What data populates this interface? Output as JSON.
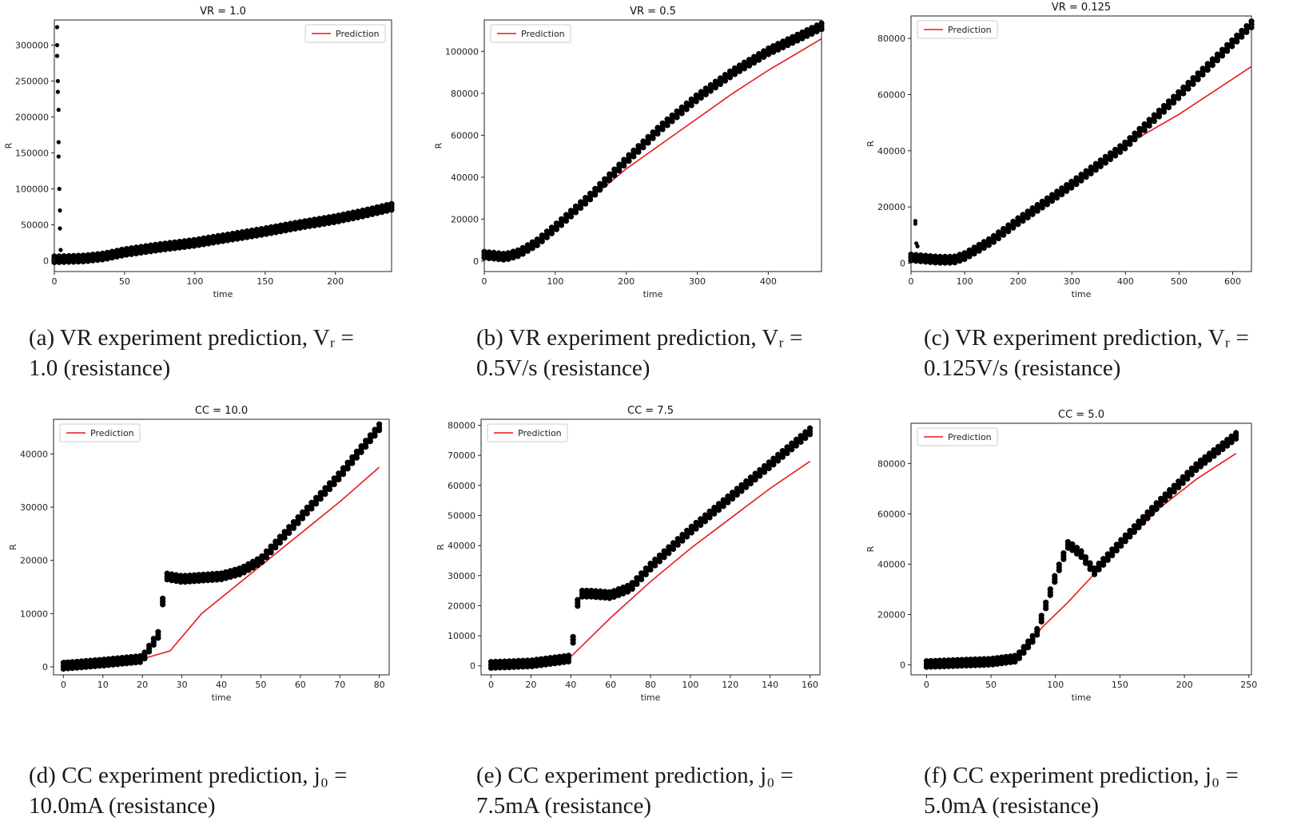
{
  "chart_data": [
    {
      "type": "scatter",
      "title": "VR = 1.0",
      "xlabel": "time",
      "ylabel": "R",
      "xlim": [
        0,
        240
      ],
      "ylim": [
        -15000,
        335000
      ],
      "xticks": [
        0,
        50,
        100,
        150,
        200
      ],
      "yticks": [
        0,
        50000,
        100000,
        150000,
        200000,
        250000,
        300000
      ],
      "legend": {
        "entries": [
          "Prediction"
        ],
        "placement": "upper right"
      },
      "series": [
        {
          "name": "Prediction",
          "kind": "line",
          "color": "#e41a1c",
          "x": [
            0,
            25,
            50,
            100,
            150,
            200,
            240
          ],
          "y": [
            0,
            2000,
            9000,
            26000,
            42000,
            59000,
            72000
          ]
        },
        {
          "kind": "points",
          "color": "#000000",
          "x": [
            0,
            20,
            35,
            50,
            75,
            100,
            125,
            150,
            175,
            200,
            220,
            240
          ],
          "y": [
            2000,
            3000,
            6000,
            12000,
            19000,
            25000,
            33000,
            41000,
            50000,
            58000,
            66000,
            75000
          ]
        },
        {
          "kind": "outliers",
          "color": "#000000",
          "x": [
            2,
            2,
            2,
            2.5,
            2.5,
            3,
            3,
            3,
            3.5,
            4,
            4,
            4.5
          ],
          "y": [
            325000,
            300000,
            285000,
            250000,
            235000,
            210000,
            165000,
            145000,
            100000,
            70000,
            45000,
            15000
          ]
        }
      ]
    },
    {
      "type": "scatter",
      "title": "VR = 0.5",
      "xlabel": "time",
      "ylabel": "R",
      "xlim": [
        0,
        475
      ],
      "ylim": [
        -5000,
        115000
      ],
      "xticks": [
        0,
        100,
        200,
        300,
        400
      ],
      "yticks": [
        0,
        20000,
        40000,
        60000,
        80000,
        100000
      ],
      "legend": {
        "entries": [
          "Prediction"
        ],
        "placement": "upper left"
      },
      "series": [
        {
          "name": "Prediction",
          "kind": "line",
          "color": "#e41a1c",
          "x": [
            0,
            50,
            100,
            150,
            200,
            250,
            300,
            350,
            400,
            475
          ],
          "y": [
            2000,
            2500,
            16000,
            30000,
            44000,
            56000,
            68000,
            80000,
            91000,
            106000
          ]
        },
        {
          "kind": "points",
          "color": "#000000",
          "x": [
            0,
            30,
            50,
            75,
            100,
            150,
            200,
            250,
            300,
            350,
            400,
            475
          ],
          "y": [
            3000,
            2000,
            4000,
            9000,
            16000,
            31000,
            48000,
            64000,
            78000,
            90000,
            100000,
            112000
          ]
        }
      ]
    },
    {
      "type": "scatter",
      "title": "VR = 0.125",
      "xlabel": "time",
      "ylabel": "R",
      "xlim": [
        0,
        635
      ],
      "ylim": [
        -3000,
        88000
      ],
      "xticks": [
        0,
        100,
        200,
        300,
        400,
        500,
        600
      ],
      "yticks": [
        0,
        20000,
        40000,
        60000,
        80000
      ],
      "legend": {
        "entries": [
          "Prediction"
        ],
        "placement": "upper left"
      },
      "series": [
        {
          "name": "Prediction",
          "kind": "line",
          "color": "#e41a1c",
          "x": [
            0,
            100,
            200,
            300,
            400,
            500,
            635
          ],
          "y": [
            1500,
            2000,
            15000,
            28000,
            42000,
            53000,
            70000
          ]
        },
        {
          "kind": "points",
          "color": "#000000",
          "x": [
            0,
            50,
            80,
            100,
            150,
            200,
            300,
            400,
            500,
            635
          ],
          "y": [
            2000,
            1200,
            1200,
            2500,
            8000,
            15000,
            28000,
            42000,
            60000,
            85000
          ]
        },
        {
          "kind": "outliers",
          "color": "#000000",
          "x": [
            8,
            8,
            10,
            12
          ],
          "y": [
            15000,
            14000,
            7000,
            6000
          ]
        }
      ]
    },
    {
      "type": "scatter",
      "title": "CC = 10.0",
      "xlabel": "time",
      "ylabel": "R",
      "xlim": [
        -2.5,
        82.5
      ],
      "ylim": [
        -1500,
        46500
      ],
      "xticks": [
        0,
        10,
        20,
        30,
        40,
        50,
        60,
        70,
        80
      ],
      "yticks": [
        0,
        10000,
        20000,
        30000,
        40000
      ],
      "legend": {
        "entries": [
          "Prediction"
        ],
        "placement": "upper left"
      },
      "series": [
        {
          "name": "Prediction",
          "kind": "line",
          "color": "#e41a1c",
          "x": [
            0,
            20,
            27,
            35,
            50,
            60,
            70,
            80
          ],
          "y": [
            1200,
            1500,
            3000,
            10000,
            19000,
            25000,
            31000,
            37500
          ]
        },
        {
          "kind": "points",
          "color": "#000000",
          "x": [
            0,
            10,
            20,
            24,
            26,
            30,
            40,
            45,
            50,
            60,
            70,
            80
          ],
          "y": [
            200,
            800,
            1500,
            6000,
            17000,
            16500,
            17000,
            18000,
            20000,
            28000,
            36000,
            45000
          ]
        }
      ]
    },
    {
      "type": "scatter",
      "title": "CC = 7.5",
      "xlabel": "time",
      "ylabel": "R",
      "xlim": [
        -5,
        165
      ],
      "ylim": [
        -3000,
        82000
      ],
      "xticks": [
        0,
        20,
        40,
        60,
        80,
        100,
        120,
        140,
        160
      ],
      "yticks": [
        0,
        10000,
        20000,
        30000,
        40000,
        50000,
        60000,
        70000,
        80000
      ],
      "legend": {
        "entries": [
          "Prediction"
        ],
        "placement": "upper left"
      },
      "series": [
        {
          "name": "Prediction",
          "kind": "line",
          "color": "#e41a1c",
          "x": [
            0,
            20,
            40,
            60,
            80,
            100,
            120,
            140,
            160
          ],
          "y": [
            1200,
            1500,
            3000,
            16000,
            28000,
            39000,
            49000,
            59000,
            68000
          ]
        },
        {
          "kind": "points",
          "color": "#000000",
          "x": [
            0,
            20,
            40,
            44,
            50,
            60,
            70,
            80,
            100,
            120,
            140,
            160
          ],
          "y": [
            300,
            800,
            2500,
            24000,
            24000,
            23500,
            26000,
            33000,
            45000,
            56000,
            67000,
            78000
          ]
        }
      ]
    },
    {
      "type": "scatter",
      "title": "CC = 5.0",
      "xlabel": "time",
      "ylabel": "R",
      "xlim": [
        -12,
        252
      ],
      "ylim": [
        -4000,
        96000
      ],
      "xticks": [
        0,
        50,
        100,
        150,
        200,
        250
      ],
      "yticks": [
        0,
        20000,
        40000,
        60000,
        80000
      ],
      "legend": {
        "entries": [
          "Prediction"
        ],
        "placement": "upper left"
      },
      "series": [
        {
          "name": "Prediction",
          "kind": "line",
          "color": "#e41a1c",
          "x": [
            0,
            50,
            70,
            90,
            110,
            130,
            150,
            180,
            210,
            240
          ],
          "y": [
            1200,
            1500,
            3000,
            15000,
            25000,
            36000,
            47000,
            62000,
            74000,
            84000
          ]
        },
        {
          "kind": "points",
          "color": "#000000",
          "x": [
            0,
            50,
            70,
            85,
            100,
            110,
            120,
            130,
            150,
            180,
            210,
            240
          ],
          "y": [
            300,
            1200,
            2500,
            12000,
            35000,
            48000,
            44000,
            37000,
            48000,
            64000,
            79000,
            91000
          ]
        }
      ]
    }
  ],
  "captions": [
    {
      "line1": "(a) VR experiment prediction, Vᵣ =",
      "line2": "1.0 (resistance)"
    },
    {
      "line1": "(b) VR experiment prediction, Vᵣ =",
      "line2": "0.5V/s (resistance)"
    },
    {
      "line1": "(c) VR experiment prediction, Vᵣ =",
      "line2": "0.125V/s (resistance)"
    },
    {
      "line1": "(d) CC experiment prediction, j₀ =",
      "line2": "10.0mA (resistance)"
    },
    {
      "line1": "(e) CC experiment prediction, j₀ =",
      "line2": "7.5mA (resistance)"
    },
    {
      "line1": "(f) CC experiment prediction, j₀ =",
      "line2": "5.0mA (resistance)"
    }
  ]
}
